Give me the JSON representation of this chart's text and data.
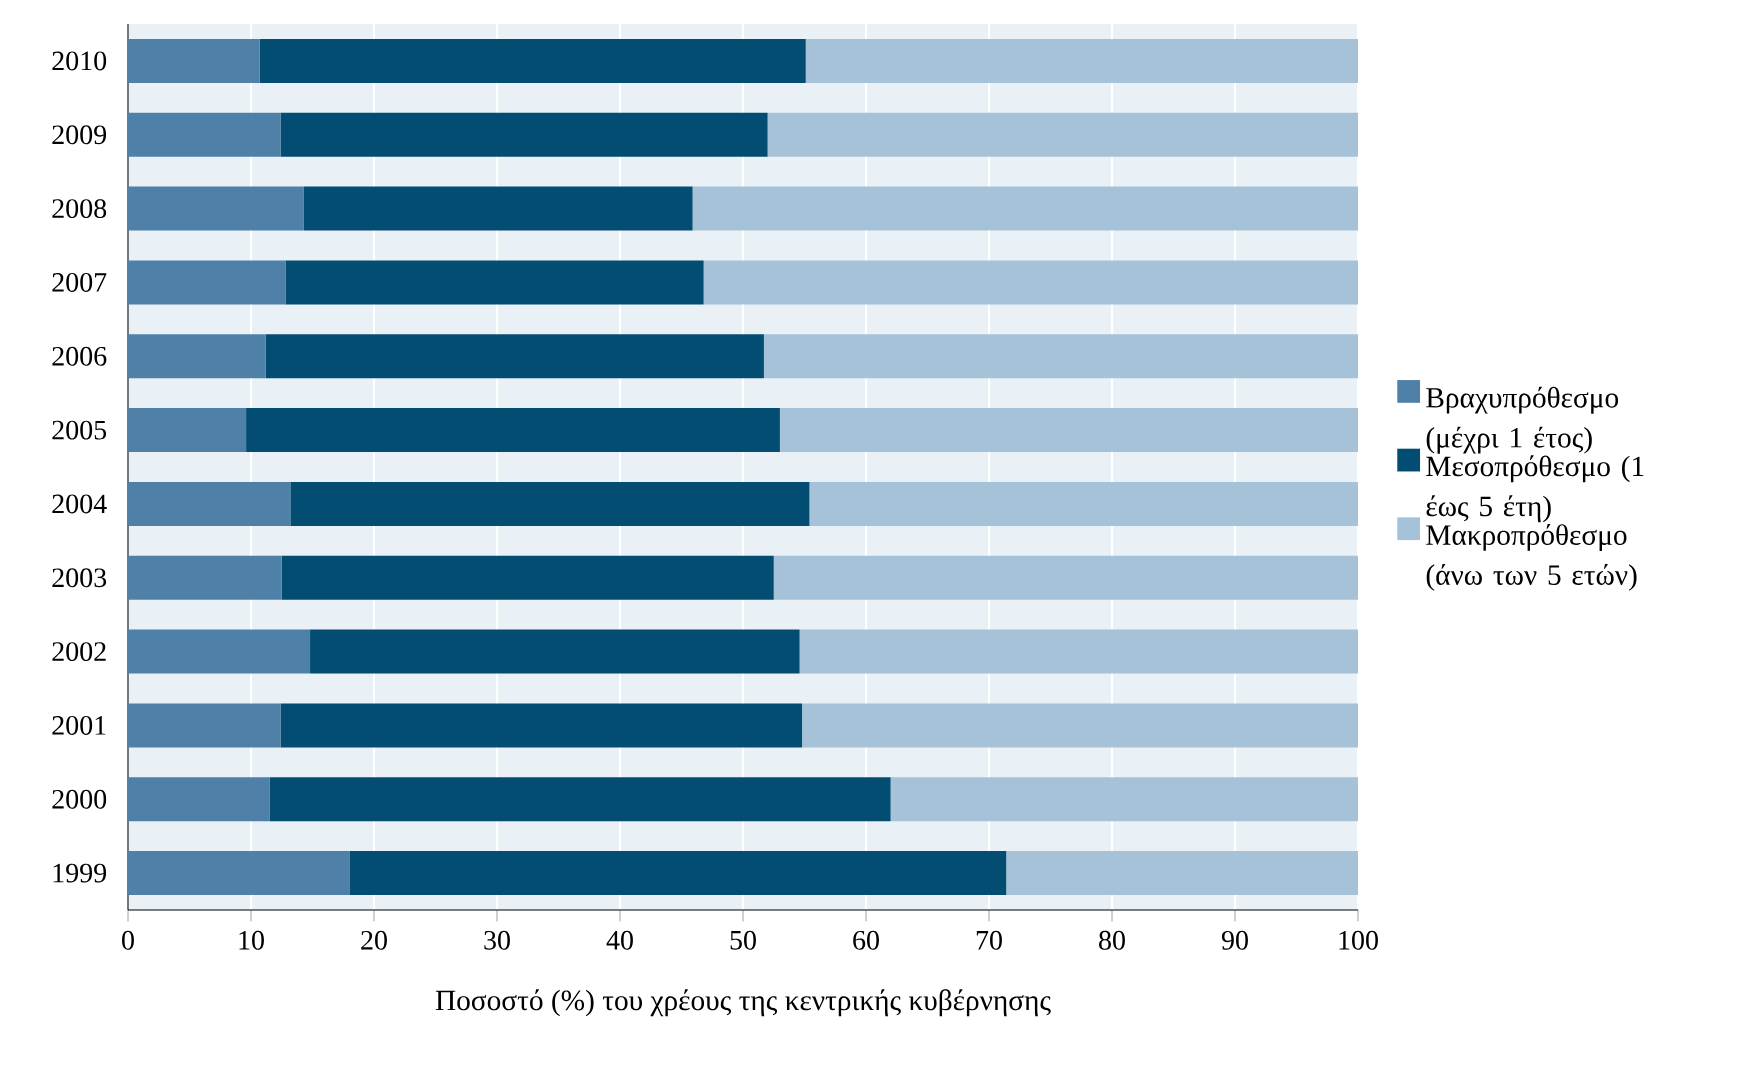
{
  "chart_data": {
    "type": "bar",
    "orientation": "horizontal",
    "stacked": true,
    "xlabel": "Ποσοστό (%) του χρέους της κεντρικής κυβέρνησης",
    "categories": [
      "2010",
      "2009",
      "2008",
      "2007",
      "2006",
      "2005",
      "2004",
      "2003",
      "2002",
      "2001",
      "2000",
      "1999"
    ],
    "series": [
      {
        "name": "Βραχυπρόθεσμο (μέχρι 1 έτος)",
        "color": "#4f80a8",
        "values": [
          10.7,
          12.4,
          14.3,
          12.8,
          11.2,
          9.6,
          13.2,
          12.5,
          14.8,
          12.4,
          11.5,
          18.0
        ]
      },
      {
        "name": "Μεσοπρόθεσμο (1 έως 5 έτη)",
        "color": "#034c72",
        "values": [
          44.4,
          39.6,
          31.6,
          34.0,
          40.5,
          43.4,
          42.2,
          40.0,
          39.8,
          42.4,
          50.5,
          53.4
        ]
      },
      {
        "name": "Μακροπρόθεσμο (άνω των 5 ετών)",
        "color": "#a6c2d8",
        "values": [
          44.9,
          48.0,
          54.1,
          53.2,
          48.3,
          47.0,
          44.6,
          47.5,
          45.4,
          45.2,
          38.0,
          28.6
        ]
      }
    ],
    "xlim": [
      0,
      100
    ],
    "xticks": [
      0,
      10,
      20,
      30,
      40,
      50,
      60,
      70,
      80,
      90,
      100
    ],
    "grid": "x",
    "legend": "right"
  }
}
